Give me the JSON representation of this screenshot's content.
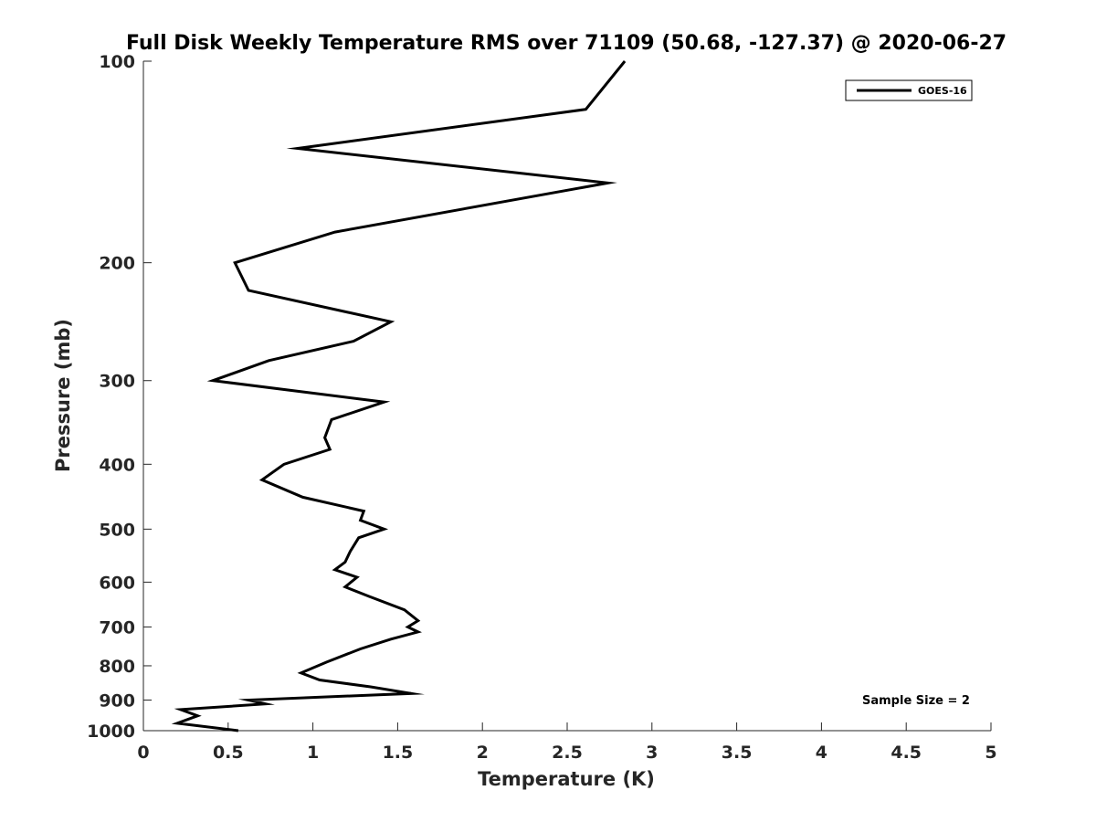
{
  "chart_data": {
    "type": "line",
    "title": "Full Disk Weekly Temperature RMS over 71109 (50.68, -127.37) @ 2020-06-27",
    "xlabel": "Temperature (K)",
    "ylabel": "Pressure (mb)",
    "xlim": [
      0,
      5
    ],
    "ylim": [
      100,
      1000
    ],
    "y_scale": "log",
    "y_reversed": true,
    "grid": false,
    "legend_position": "top-right",
    "x_ticks": [
      0,
      0.5,
      1,
      1.5,
      2,
      2.5,
      3,
      3.5,
      4,
      4.5,
      5
    ],
    "x_tick_labels": [
      "0",
      "0.5",
      "1",
      "1.5",
      "2",
      "2.5",
      "3",
      "3.5",
      "4",
      "4.5",
      "5"
    ],
    "y_ticks": [
      100,
      200,
      300,
      400,
      500,
      600,
      700,
      800,
      900,
      1000
    ],
    "y_tick_labels": [
      "100",
      "200",
      "300",
      "400",
      "500",
      "600",
      "700",
      "800",
      "900",
      "1000"
    ],
    "series": [
      {
        "name": "GOES-16",
        "color": "#000000",
        "points": [
          [
            2.84,
            100
          ],
          [
            2.61,
            118
          ],
          [
            0.91,
            135
          ],
          [
            2.74,
            152
          ],
          [
            1.13,
            180
          ],
          [
            0.54,
            200
          ],
          [
            0.62,
            220
          ],
          [
            1.46,
            245
          ],
          [
            1.24,
            262
          ],
          [
            0.74,
            280
          ],
          [
            0.41,
            300
          ],
          [
            1.42,
            323
          ],
          [
            1.11,
            343
          ],
          [
            1.07,
            365
          ],
          [
            1.1,
            380
          ],
          [
            0.83,
            400
          ],
          [
            0.7,
            422
          ],
          [
            0.94,
            448
          ],
          [
            1.3,
            470
          ],
          [
            1.28,
            485
          ],
          [
            1.42,
            500
          ],
          [
            1.27,
            515
          ],
          [
            1.22,
            540
          ],
          [
            1.19,
            560
          ],
          [
            1.13,
            575
          ],
          [
            1.26,
            590
          ],
          [
            1.19,
            610
          ],
          [
            1.33,
            630
          ],
          [
            1.54,
            660
          ],
          [
            1.62,
            685
          ],
          [
            1.56,
            700
          ],
          [
            1.62,
            712
          ],
          [
            1.46,
            730
          ],
          [
            1.28,
            755
          ],
          [
            1.08,
            790
          ],
          [
            0.93,
            820
          ],
          [
            1.04,
            840
          ],
          [
            1.34,
            860
          ],
          [
            1.58,
            880
          ],
          [
            0.62,
            900
          ],
          [
            0.72,
            912
          ],
          [
            0.22,
            930
          ],
          [
            0.32,
            950
          ],
          [
            0.2,
            975
          ],
          [
            0.56,
            1000
          ]
        ]
      }
    ],
    "annotations": [
      "Sample Size = 2"
    ]
  }
}
